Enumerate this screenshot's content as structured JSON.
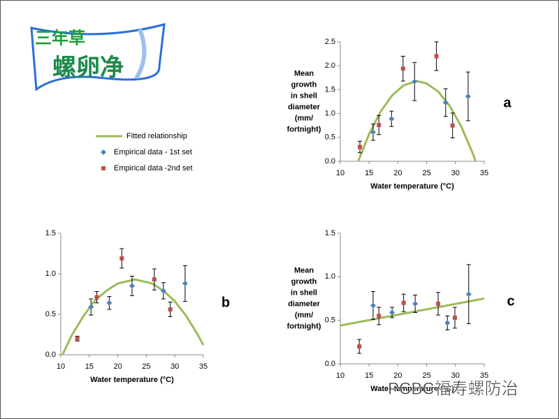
{
  "logo": {
    "line1": "三年草",
    "line2": "螺卵净"
  },
  "watermark": "PCBC福寿螺防治",
  "chart_data": [
    {
      "type": "scatter",
      "panel": "a",
      "x_label": "Water temperature (°C)",
      "y_label": [
        "Mean",
        "growth",
        "in shell",
        "diameter",
        "(mm/",
        "fortnight)"
      ],
      "xlim": [
        10,
        35
      ],
      "xticks": [
        10,
        15,
        20,
        25,
        30,
        35
      ],
      "ylim": [
        0,
        2.5
      ],
      "yticks": [
        {
          "value": 0,
          "label": "0.0"
        },
        {
          "value": 0.5,
          "label": "0.5"
        },
        {
          "value": 1,
          "label": "1.0"
        },
        {
          "value": 1.5,
          "label": "1.5"
        },
        {
          "value": 2,
          "label": "2.0"
        },
        {
          "value": 2.5,
          "label": "2.5"
        }
      ],
      "series": [
        {
          "name": "Fitted relationship",
          "color": "#9bbb59",
          "marker": "line",
          "x": [
            13.1,
            15,
            17,
            19,
            21,
            23.3,
            25,
            27,
            29,
            31,
            33,
            33.5
          ],
          "values": [
            0,
            0.57,
            1.04,
            1.38,
            1.59,
            1.68,
            1.63,
            1.46,
            1.16,
            0.73,
            0.17,
            0
          ]
        },
        {
          "name": "Empirical data - 1st set",
          "color": "#4f81bd",
          "marker": "diamond",
          "x": [
            15.7,
            18.9,
            22.9,
            28.3,
            32.2
          ],
          "values": [
            0.61,
            0.89,
            1.67,
            1.23,
            1.36
          ],
          "errors": [
            0.17,
            0.16,
            0.4,
            0.29,
            0.51
          ]
        },
        {
          "name": "Empirical data -2nd set",
          "color": "#c0504d",
          "marker": "square",
          "x": [
            13.4,
            16.7,
            20.9,
            26.7,
            29.5
          ],
          "values": [
            0.3,
            0.76,
            1.94,
            2.2,
            0.75
          ],
          "errors": [
            0.12,
            0.2,
            0.26,
            0.3,
            0.26
          ]
        }
      ]
    },
    {
      "type": "scatter",
      "panel": "b",
      "x_label": "Water temperature (°C)",
      "xlim": [
        10,
        35
      ],
      "xticks": [
        10,
        15,
        20,
        25,
        30,
        35
      ],
      "ylim": [
        0,
        1.5
      ],
      "yticks": [
        {
          "value": 0,
          "label": "0.0"
        },
        {
          "value": 0.5,
          "label": "0.5"
        },
        {
          "value": 1,
          "label": "1.0"
        },
        {
          "value": 1.5,
          "label": "1.5"
        }
      ],
      "series": [
        {
          "color": "#9bbb59",
          "marker": "line",
          "x": [
            10.3,
            12,
            14,
            16,
            18,
            20,
            23,
            26,
            28,
            30,
            32,
            34,
            35
          ],
          "values": [
            0,
            0.25,
            0.48,
            0.67,
            0.79,
            0.88,
            0.93,
            0.88,
            0.79,
            0.66,
            0.48,
            0.25,
            0.12
          ]
        },
        {
          "color": "#4f81bd",
          "marker": "diamond",
          "x": [
            15.3,
            18.5,
            22.5,
            28.0,
            31.8
          ],
          "values": [
            0.59,
            0.64,
            0.85,
            0.79,
            0.88
          ],
          "errors": [
            0.1,
            0.08,
            0.12,
            0.1,
            0.22
          ]
        },
        {
          "color": "#c0504d",
          "marker": "square",
          "x": [
            12.9,
            16.3,
            20.7,
            26.4,
            29.2
          ],
          "values": [
            0.2,
            0.71,
            1.19,
            0.93,
            0.56
          ],
          "errors": [
            0.03,
            0.07,
            0.12,
            0.13,
            0.09
          ]
        }
      ]
    },
    {
      "type": "scatter",
      "panel": "c",
      "x_label": "Water temperature (°C)",
      "y_label": [
        "Mean",
        "growth",
        "in shell",
        "diameter",
        "(mm/",
        "fortnight)"
      ],
      "xlim": [
        10,
        35
      ],
      "xticks": [
        10,
        15,
        20,
        25,
        30,
        35
      ],
      "ylim": [
        0,
        1.5
      ],
      "yticks": [
        {
          "value": 0,
          "label": "0.0"
        },
        {
          "value": 0.5,
          "label": "0.5"
        },
        {
          "value": 1,
          "label": "1.0"
        },
        {
          "value": 1.5,
          "label": "1.5"
        }
      ],
      "series": [
        {
          "color": "#9bbb59",
          "marker": "line",
          "x": [
            10,
            35
          ],
          "values": [
            0.44,
            0.75
          ]
        },
        {
          "color": "#4f81bd",
          "marker": "diamond",
          "x": [
            15.7,
            19.0,
            23.0,
            28.6,
            32.3
          ],
          "values": [
            0.67,
            0.59,
            0.69,
            0.47,
            0.8
          ],
          "errors": [
            0.16,
            0.06,
            0.1,
            0.08,
            0.34
          ]
        },
        {
          "color": "#c0504d",
          "marker": "square",
          "x": [
            13.3,
            16.7,
            21.0,
            27.0,
            29.9
          ],
          "values": [
            0.2,
            0.55,
            0.7,
            0.69,
            0.53
          ],
          "errors": [
            0.08,
            0.1,
            0.1,
            0.13,
            0.12
          ]
        }
      ]
    }
  ]
}
